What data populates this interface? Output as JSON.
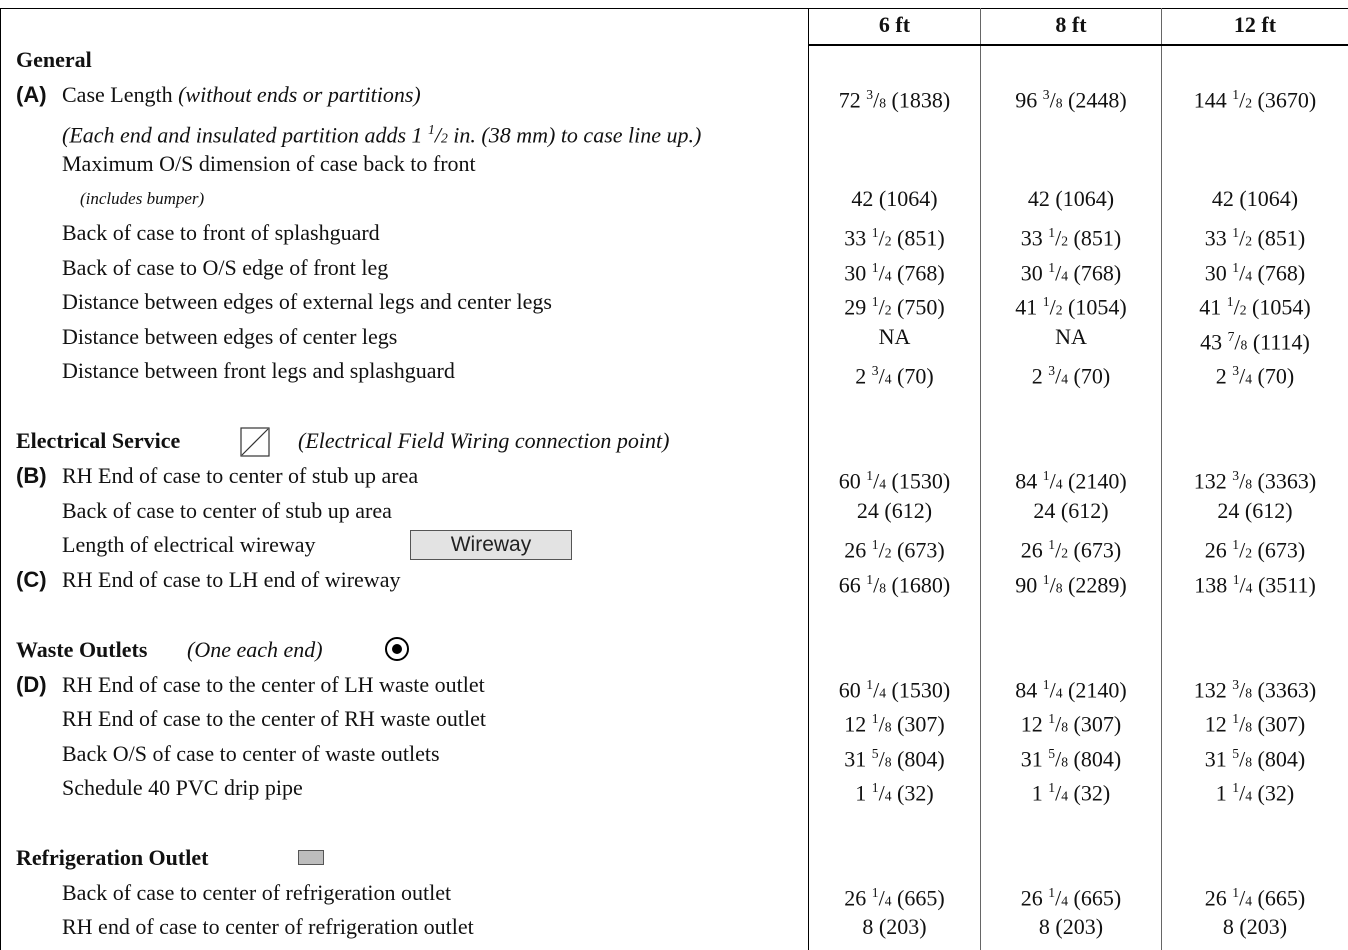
{
  "columns": [
    "6 ft",
    "8 ft",
    "12 ft"
  ],
  "sections": {
    "general": {
      "title": "General",
      "case_length": {
        "letter": "(A)",
        "label": "Case Length",
        "note": "(without ends or partitions)",
        "values": [
          "72 3/8 (1838)",
          "96 3/8 (2448)",
          "144 1/2 (3670)"
        ]
      },
      "end_note": "(Each end and insulated partition adds 1 1/2 in. (38 mm) to case line up.)",
      "max_dim": {
        "label": "Maximum O/S dimension of case back to front",
        "sublabel": "(includes bumper)",
        "values": [
          "42  (1064)",
          "42  (1064)",
          "42  (1064)"
        ]
      },
      "rows": [
        {
          "label": "Back of case to front of splashguard",
          "values": [
            "33 1/2  (851)",
            "33 1/2  (851)",
            "33 1/2  (851)"
          ]
        },
        {
          "label": "Back of case to O/S edge of front leg",
          "values": [
            "30 1/4  (768)",
            "30 1/4  (768)",
            "30 1/4  (768)"
          ]
        },
        {
          "label": "Distance between edges of external legs and center legs",
          "values": [
            "29 1/2  (750)",
            "41 1/2  (1054)",
            "41 1/2  (1054)"
          ]
        },
        {
          "label": "Distance between edges of center legs",
          "values": [
            "NA",
            "NA",
            "43 7/8  (1114)"
          ]
        },
        {
          "label": "Distance between front legs and splashguard",
          "values": [
            "2 3/4 (70)",
            "2 3/4 (70)",
            "2 3/4 (70)"
          ]
        }
      ]
    },
    "electrical": {
      "title": "Electrical Service",
      "icon": "field-wiring-connection-icon",
      "note": "(Electrical Field Wiring connection point)",
      "rows": [
        {
          "letter": "(B)",
          "label": "RH End of case to center of stub up area",
          "values": [
            "60 1/4  (1530)",
            "84 1/4  (2140)",
            "132 3/8  (3363)"
          ]
        },
        {
          "letter": "",
          "label": "Back of case to center of stub up area",
          "values": [
            "24  (612)",
            "24  (612)",
            "24  (612)"
          ]
        },
        {
          "letter": "",
          "label": "Length of electrical wireway",
          "values": [
            "26 1/2  (673)",
            "26 1/2  (673)",
            "26 1/2  (673)"
          ]
        },
        {
          "letter": "(C)",
          "label": "RH End of case to LH end of wireway",
          "values": [
            "66 1/8  (1680)",
            "90 1/8  (2289)",
            "138 1/4  (3511)"
          ]
        }
      ],
      "wireway_label": "Wireway"
    },
    "waste": {
      "title": "Waste Outlets",
      "icon": "waste-outlet-icon",
      "note": "(One each end)",
      "rows": [
        {
          "letter": "(D)",
          "label": "RH End of case to the center of LH waste outlet",
          "values": [
            "60 1/4  (1530)",
            "84 1/4  (2140)",
            "132 3/8  (3363)"
          ]
        },
        {
          "letter": "",
          "label": "RH End of case to the center of RH waste outlet",
          "values": [
            "12 1/8 (307)",
            "12 1/8 (307)",
            "12 1/8 (307)"
          ]
        },
        {
          "letter": "",
          "label": "Back O/S of case to center of waste outlets",
          "values": [
            "31 5/8  (804)",
            "31 5/8  (804)",
            "31 5/8  (804)"
          ]
        },
        {
          "letter": "",
          "label": "Schedule 40 PVC drip pipe",
          "values": [
            "1 1/4  (32)",
            "1 1/4  (32)",
            "1 1/4  (32)"
          ]
        }
      ]
    },
    "refrigeration": {
      "title": "Refrigeration Outlet",
      "icon": "refrigeration-outlet-icon",
      "rows": [
        {
          "label": "Back of case to center of refrigeration outlet",
          "values": [
            "26 1/4  (665)",
            "26 1/4  (665)",
            "26 1/4  (665)"
          ]
        },
        {
          "label": "RH end of case to center of refrigeration outlet",
          "values": [
            "8  (203)",
            "8  (203)",
            "8  (203)"
          ]
        }
      ]
    }
  }
}
